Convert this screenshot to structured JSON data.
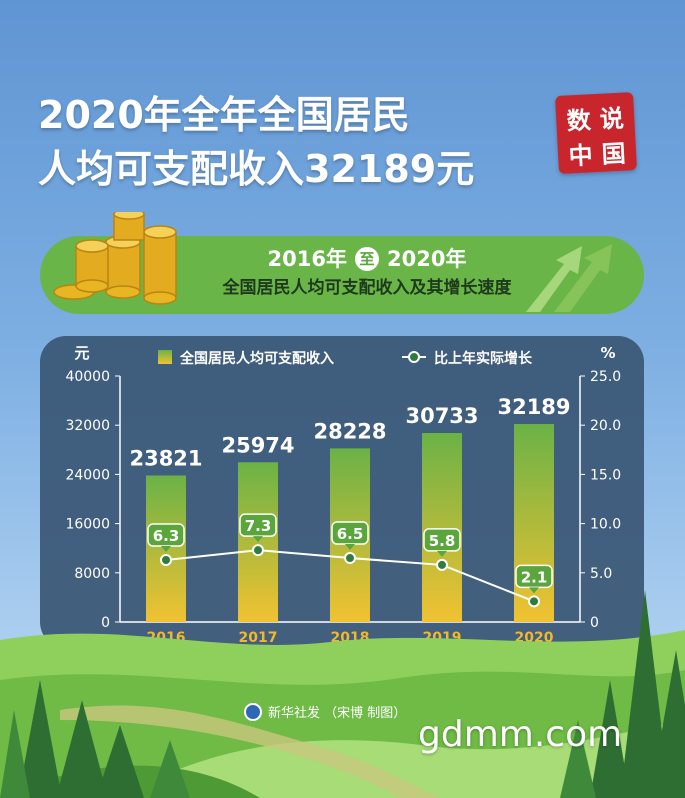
{
  "header": {
    "title_line1": "2020年全年全国居民",
    "title_line2": "人均可支配收入32189元",
    "seal_chars": [
      "数",
      "说",
      "中",
      "国"
    ]
  },
  "banner": {
    "year_start": "2016年",
    "connector": "至",
    "year_end": "2020年",
    "subtitle": "全国居民人均可支配收入及其增长速度"
  },
  "colors": {
    "bar_top": "#6bb246",
    "bar_bottom": "#f1c232",
    "line": "#ffffff",
    "marker": "#2f7d3d",
    "label_box": "#5aa53c"
  },
  "chart_data": {
    "type": "bar",
    "categories": [
      "2016",
      "2017",
      "2018",
      "2019",
      "2020"
    ],
    "series": [
      {
        "name": "全国居民人均可支配收入",
        "type": "bar",
        "axis": "left",
        "values": [
          23821,
          25974,
          28228,
          30733,
          32189
        ]
      },
      {
        "name": "比上年实际增长",
        "type": "line",
        "axis": "right",
        "values": [
          6.3,
          7.3,
          6.5,
          5.8,
          2.1
        ]
      }
    ],
    "y_left": {
      "unit": "元",
      "min": 0,
      "max": 40000,
      "ticks": [
        "0",
        "8000",
        "16000",
        "24000",
        "32000",
        "40000"
      ]
    },
    "y_right": {
      "unit": "%",
      "min": 0,
      "max": 25,
      "ticks": [
        "0",
        "5.0",
        "10.0",
        "15.0",
        "20.0",
        "25.0"
      ]
    },
    "legend_position": "top"
  },
  "footer": {
    "credit": "新华社发 （宋博 制图）",
    "watermark": "gdmm.com"
  }
}
